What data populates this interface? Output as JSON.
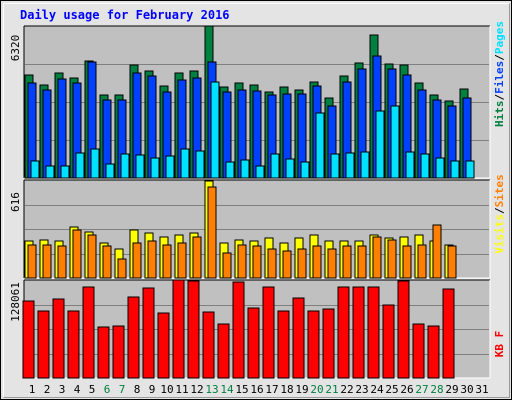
{
  "chart_data": {
    "type": "bar",
    "title": "Daily usage for February 2016",
    "categories": [
      "1",
      "2",
      "3",
      "4",
      "5",
      "6",
      "7",
      "8",
      "9",
      "10",
      "11",
      "12",
      "13",
      "14",
      "15",
      "16",
      "17",
      "18",
      "19",
      "20",
      "21",
      "22",
      "23",
      "24",
      "25",
      "26",
      "27",
      "28",
      "29",
      "30",
      "31"
    ],
    "weekend_days": [
      6,
      7,
      13,
      14,
      20,
      21,
      27,
      28
    ],
    "colors": {
      "hits": "#008040",
      "files": "#0040ff",
      "pages": "#00e0ff",
      "visits": "#ffff00",
      "sites": "#ff8000",
      "kbytes": "#ff0000",
      "weekday_label": "#000000",
      "weekend_label": "#008040",
      "panel_bg": "#c0c0c0",
      "frame_bg": "#e4e4e4",
      "title": "#0000ff"
    },
    "panels": [
      {
        "id": "hits-files-pages",
        "ymax_label": "6320",
        "ymax": 6320,
        "legend": [
          {
            "text": "Hits",
            "color": "#008040"
          },
          {
            "text": "/",
            "color": "#000000"
          },
          {
            "text": "Files",
            "color": "#0040ff"
          },
          {
            "text": "/",
            "color": "#000000"
          },
          {
            "text": "Pages",
            "color": "#00e0ff"
          }
        ],
        "series": [
          {
            "name": "Hits",
            "color": "#008040",
            "values": [
              4300,
              3880,
              4380,
              4170,
              4860,
              3460,
              3460,
              4680,
              4430,
              3820,
              4380,
              4430,
              6320,
              3800,
              3930,
              3880,
              3590,
              3800,
              3640,
              4000,
              3340,
              4260,
              4790,
              5940,
              4750,
              4680,
              3930,
              3460,
              3200,
              3690,
              null
            ]
          },
          {
            "name": "Files",
            "color": "#0040ff",
            "values": [
              3970,
              3670,
              4110,
              3930,
              4830,
              3260,
              3260,
              4380,
              4260,
              3560,
              4090,
              4170,
              4840,
              3560,
              3670,
              3620,
              3460,
              3510,
              3510,
              3820,
              3010,
              3990,
              4540,
              5080,
              4520,
              4300,
              3670,
              3230,
              2980,
              3330,
              null
            ]
          },
          {
            "name": "Pages",
            "color": "#00e0ff",
            "values": [
              700,
              480,
              490,
              1040,
              1200,
              580,
              1000,
              970,
              830,
              900,
              1210,
              1110,
              3990,
              650,
              730,
              500,
              980,
              800,
              660,
              2690,
              990,
              1030,
              1100,
              2770,
              2990,
              1070,
              1010,
              850,
              700,
              690,
              null
            ]
          }
        ]
      },
      {
        "id": "visits-sites",
        "ymax_label": "616",
        "ymax": 616,
        "legend": [
          {
            "text": "Visits",
            "color": "#ffff00"
          },
          {
            "text": "/",
            "color": "#000000"
          },
          {
            "text": "Sites",
            "color": "#ff8000"
          }
        ],
        "series": [
          {
            "name": "Visits",
            "color": "#ffff00",
            "values": [
              230,
              240,
              230,
              320,
              290,
              220,
              180,
              300,
              280,
              260,
              270,
              280,
              612,
              220,
              240,
              230,
              250,
              220,
              250,
              270,
              230,
              230,
              230,
              270,
              250,
              260,
              270,
              230,
              210,
              null,
              null
            ]
          },
          {
            "name": "Sites",
            "color": "#ff8000",
            "values": [
              210,
              210,
              200,
              300,
              270,
              200,
              120,
              220,
              230,
              210,
              220,
              260,
              573,
              160,
              210,
              200,
              180,
              170,
              180,
              200,
              180,
              200,
              200,
              260,
              240,
              200,
              210,
              330,
              200,
              null,
              null
            ]
          }
        ]
      },
      {
        "id": "kbytes",
        "ymax_label": "128061",
        "ymax": 128061,
        "legend": [
          {
            "text": "KB",
            "color": "#ff0000"
          },
          {
            "text": "F",
            "color": "#ff0000"
          }
        ],
        "series": [
          {
            "name": "KBytes",
            "color": "#ff0000",
            "values": [
              100000,
              88000,
              103500,
              87500,
              119000,
              66000,
              67500,
              105500,
              117000,
              85000,
              128061,
              126500,
              86500,
              70000,
              125000,
              91000,
              118500,
              87500,
              105000,
              88000,
              90500,
              118500,
              118500,
              119000,
              95000,
              126500,
              70000,
              67500,
              116500,
              null,
              null
            ]
          }
        ]
      }
    ]
  }
}
